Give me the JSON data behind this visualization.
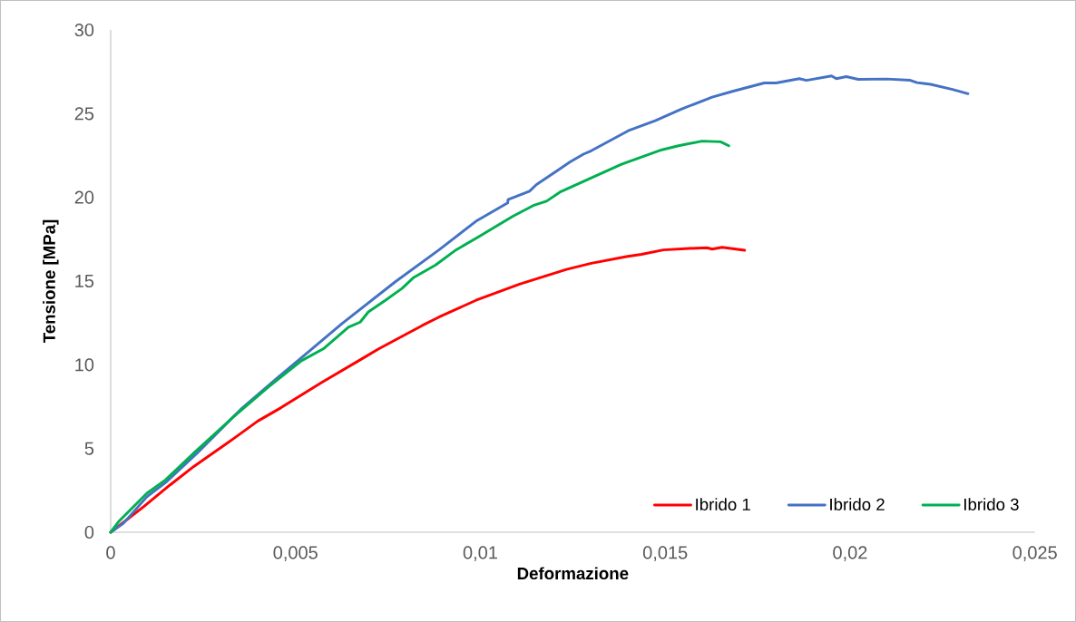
{
  "chart_data": {
    "type": "line",
    "xlabel": "Deformazione",
    "ylabel": "Tensione [MPa]",
    "xlim": [
      0,
      0.025
    ],
    "ylim": [
      0,
      30
    ],
    "xticks": [
      0,
      {
        "value": 0.005,
        "label": "0,005"
      },
      {
        "value": 0.01,
        "label": "0,01"
      },
      {
        "value": 0.015,
        "label": "0,015"
      },
      {
        "value": 0.02,
        "label": "0,02"
      },
      {
        "value": 0.025,
        "label": "0,025"
      }
    ],
    "yticks": [
      0,
      5,
      10,
      15,
      20,
      25,
      30
    ],
    "grid": false,
    "legend": "bottom right",
    "marker": "none",
    "line_style": "solid",
    "series": [
      {
        "name": "Ibrido 1",
        "color": "#ff0000",
        "x": [
          0,
          0.00089,
          0.00161,
          0.00225,
          0.00316,
          0.00398,
          0.00461,
          0.0057,
          0.00679,
          0.00725,
          0.00843,
          0.00888,
          0.00988,
          0.01106,
          0.01233,
          0.013,
          0.01395,
          0.01436,
          0.01495,
          0.01554,
          0.01613,
          0.01627,
          0.01654,
          0.01715
        ],
        "values": [
          0,
          1.52,
          2.83,
          3.93,
          5.33,
          6.64,
          7.44,
          8.94,
          10.35,
          10.95,
          12.35,
          12.85,
          13.85,
          14.82,
          15.7,
          16.06,
          16.46,
          16.6,
          16.86,
          16.94,
          16.99,
          16.91,
          17.02,
          16.84
        ]
      },
      {
        "name": "Ibrido 2",
        "color": "#4472c4",
        "x": [
          0,
          0.00034,
          0.00098,
          0.00152,
          0.00234,
          0.00352,
          0.00452,
          0.00534,
          0.00625,
          0.0077,
          0.00888,
          0.00988,
          0.01074,
          0.01075,
          0.01133,
          0.01152,
          0.01206,
          0.01243,
          0.01279,
          0.013,
          0.014,
          0.01473,
          0.01545,
          0.01627,
          0.01682,
          0.01768,
          0.018,
          0.01863,
          0.01882,
          0.0195,
          0.01963,
          0.0199,
          0.02022,
          0.021,
          0.02163,
          0.02181,
          0.02218,
          0.02277,
          0.02319
        ],
        "values": [
          0,
          0.52,
          2.12,
          3.03,
          4.73,
          7.34,
          9.24,
          10.75,
          12.45,
          14.96,
          16.86,
          18.57,
          19.67,
          19.87,
          20.37,
          20.77,
          21.57,
          22.12,
          22.58,
          22.78,
          23.98,
          24.58,
          25.28,
          25.99,
          26.33,
          26.83,
          26.83,
          27.09,
          26.99,
          27.25,
          27.09,
          27.21,
          27.05,
          27.07,
          26.99,
          26.85,
          26.75,
          26.45,
          26.19
        ]
      },
      {
        "name": "Ibrido 3",
        "color": "#00b050",
        "x": [
          0,
          0.00021,
          0.00098,
          0.00148,
          0.00225,
          0.00334,
          0.00425,
          0.00516,
          0.00575,
          0.00607,
          0.00643,
          0.00675,
          0.00697,
          0.00743,
          0.00788,
          0.0082,
          0.00879,
          0.00934,
          0.00997,
          0.01088,
          0.01143,
          0.01179,
          0.01215,
          0.01291,
          0.01382,
          0.01445,
          0.01491,
          0.01536,
          0.016,
          0.0165,
          0.01672
        ],
        "values": [
          0,
          0.62,
          2.33,
          3.12,
          4.73,
          6.93,
          8.64,
          10.24,
          10.95,
          11.55,
          12.25,
          12.55,
          13.16,
          13.85,
          14.56,
          15.22,
          15.96,
          16.86,
          17.67,
          18.87,
          19.51,
          19.77,
          20.31,
          21.07,
          21.98,
          22.48,
          22.84,
          23.08,
          23.36,
          23.32,
          23.08
        ]
      }
    ]
  }
}
